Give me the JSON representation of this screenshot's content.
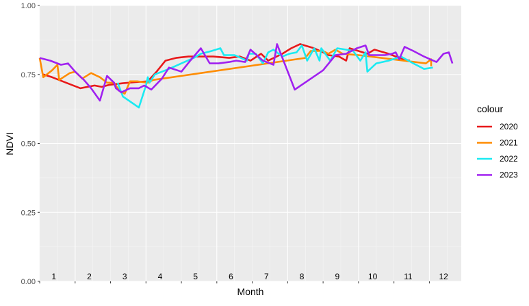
{
  "chart_data": {
    "type": "line",
    "xlabel": "Month",
    "ylabel": "NDVI",
    "ylim": [
      0,
      1
    ],
    "xlim": [
      1,
      12.9
    ],
    "yticks": [
      "0.00",
      "0.25",
      "0.50",
      "0.75",
      "1.00"
    ],
    "month_labels": [
      "1",
      "2",
      "3",
      "4",
      "5",
      "6",
      "7",
      "8",
      "9",
      "10",
      "11",
      "12"
    ],
    "grid": true,
    "legend": {
      "title": "colour",
      "placement": "right"
    },
    "series": [
      {
        "name": "2020",
        "color": "#e8191a",
        "points": [
          [
            1.1,
            0.75
          ],
          [
            1.35,
            0.74
          ],
          [
            1.85,
            0.715
          ],
          [
            2.15,
            0.7
          ],
          [
            2.55,
            0.71
          ],
          [
            2.75,
            0.705
          ],
          [
            2.95,
            0.712
          ],
          [
            3.35,
            0.718
          ],
          [
            3.7,
            0.722
          ],
          [
            4.05,
            0.725
          ],
          [
            4.3,
            0.76
          ],
          [
            4.55,
            0.8
          ],
          [
            4.85,
            0.81
          ],
          [
            5.2,
            0.815
          ],
          [
            5.9,
            0.815
          ],
          [
            6.35,
            0.81
          ],
          [
            6.65,
            0.815
          ],
          [
            6.95,
            0.8
          ],
          [
            7.25,
            0.825
          ],
          [
            7.45,
            0.8
          ],
          [
            7.85,
            0.825
          ],
          [
            8.1,
            0.845
          ],
          [
            8.35,
            0.86
          ],
          [
            8.75,
            0.845
          ],
          [
            9.0,
            0.83
          ],
          [
            9.15,
            0.82
          ],
          [
            9.45,
            0.815
          ],
          [
            9.65,
            0.8
          ],
          [
            9.75,
            0.845
          ],
          [
            10.0,
            0.835
          ],
          [
            10.25,
            0.825
          ],
          [
            10.45,
            0.84
          ],
          [
            10.85,
            0.825
          ],
          [
            11.15,
            0.81
          ],
          [
            11.45,
            0.8
          ]
        ]
      },
      {
        "name": "2021",
        "color": "#ff8c00",
        "points": [
          [
            1.0,
            0.81
          ],
          [
            1.1,
            0.74
          ],
          [
            1.35,
            0.765
          ],
          [
            1.5,
            0.785
          ],
          [
            1.55,
            0.73
          ],
          [
            1.85,
            0.755
          ],
          [
            2.0,
            0.76
          ],
          [
            2.2,
            0.735
          ],
          [
            2.45,
            0.755
          ],
          [
            2.7,
            0.74
          ],
          [
            2.9,
            0.72
          ],
          [
            3.1,
            0.72
          ],
          [
            3.25,
            0.69
          ],
          [
            3.4,
            0.68
          ],
          [
            3.55,
            0.725
          ],
          [
            3.75,
            0.725
          ],
          [
            4.05,
            0.72
          ],
          [
            4.2,
            0.73
          ],
          [
            8.5,
            0.81
          ],
          [
            8.65,
            0.835
          ],
          [
            9.0,
            0.835
          ],
          [
            9.15,
            0.825
          ],
          [
            9.35,
            0.84
          ],
          [
            9.55,
            0.825
          ],
          [
            10.0,
            0.82
          ],
          [
            11.9,
            0.79
          ],
          [
            12.05,
            0.805
          ],
          [
            12.05,
            0.78
          ]
        ]
      },
      {
        "name": "2022",
        "color": "#1aeaf2",
        "points": [
          [
            3.2,
            0.72
          ],
          [
            3.35,
            0.67
          ],
          [
            3.8,
            0.63
          ],
          [
            4.0,
            0.71
          ],
          [
            4.05,
            0.74
          ],
          [
            4.1,
            0.72
          ],
          [
            4.25,
            0.75
          ],
          [
            4.65,
            0.77
          ],
          [
            5.0,
            0.79
          ],
          [
            5.35,
            0.81
          ],
          [
            5.55,
            0.825
          ],
          [
            5.85,
            0.835
          ],
          [
            6.1,
            0.845
          ],
          [
            6.2,
            0.82
          ],
          [
            6.5,
            0.82
          ],
          [
            6.85,
            0.8
          ],
          [
            6.9,
            0.825
          ],
          [
            7.1,
            0.825
          ],
          [
            7.3,
            0.79
          ],
          [
            7.45,
            0.83
          ],
          [
            7.6,
            0.84
          ],
          [
            7.85,
            0.815
          ],
          [
            8.05,
            0.825
          ],
          [
            8.25,
            0.83
          ],
          [
            8.4,
            0.855
          ],
          [
            8.55,
            0.8
          ],
          [
            8.75,
            0.845
          ],
          [
            8.9,
            0.8
          ],
          [
            8.95,
            0.845
          ],
          [
            9.2,
            0.8
          ],
          [
            9.4,
            0.845
          ],
          [
            9.65,
            0.84
          ],
          [
            9.85,
            0.835
          ],
          [
            10.05,
            0.8
          ],
          [
            10.2,
            0.83
          ],
          [
            10.25,
            0.76
          ],
          [
            10.5,
            0.79
          ],
          [
            10.85,
            0.8
          ],
          [
            11.2,
            0.815
          ],
          [
            11.55,
            0.79
          ],
          [
            11.85,
            0.77
          ],
          [
            12.1,
            0.775
          ]
        ]
      },
      {
        "name": "2023",
        "color": "#a020f0",
        "points": [
          [
            1.0,
            0.81
          ],
          [
            1.3,
            0.8
          ],
          [
            1.6,
            0.785
          ],
          [
            1.8,
            0.79
          ],
          [
            2.0,
            0.76
          ],
          [
            2.25,
            0.73
          ],
          [
            2.45,
            0.7
          ],
          [
            2.7,
            0.655
          ],
          [
            2.9,
            0.745
          ],
          [
            3.1,
            0.72
          ],
          [
            3.15,
            0.7
          ],
          [
            3.3,
            0.685
          ],
          [
            3.55,
            0.7
          ],
          [
            3.8,
            0.7
          ],
          [
            3.95,
            0.71
          ],
          [
            4.15,
            0.695
          ],
          [
            4.45,
            0.735
          ],
          [
            4.65,
            0.775
          ],
          [
            5.0,
            0.76
          ],
          [
            5.25,
            0.8
          ],
          [
            5.55,
            0.845
          ],
          [
            5.8,
            0.79
          ],
          [
            6.05,
            0.79
          ],
          [
            6.35,
            0.795
          ],
          [
            6.55,
            0.8
          ],
          [
            6.8,
            0.795
          ],
          [
            6.95,
            0.84
          ],
          [
            7.3,
            0.8
          ],
          [
            7.6,
            0.785
          ],
          [
            7.7,
            0.86
          ],
          [
            8.2,
            0.695
          ],
          [
            9.0,
            0.765
          ],
          [
            9.35,
            0.82
          ],
          [
            9.65,
            0.825
          ],
          [
            9.95,
            0.845
          ],
          [
            10.2,
            0.855
          ],
          [
            10.3,
            0.82
          ],
          [
            10.75,
            0.82
          ],
          [
            10.95,
            0.825
          ],
          [
            11.05,
            0.83
          ],
          [
            11.15,
            0.805
          ],
          [
            11.3,
            0.85
          ],
          [
            11.55,
            0.835
          ],
          [
            11.85,
            0.815
          ],
          [
            12.2,
            0.795
          ],
          [
            12.4,
            0.825
          ],
          [
            12.55,
            0.83
          ],
          [
            12.65,
            0.79
          ]
        ]
      }
    ]
  }
}
